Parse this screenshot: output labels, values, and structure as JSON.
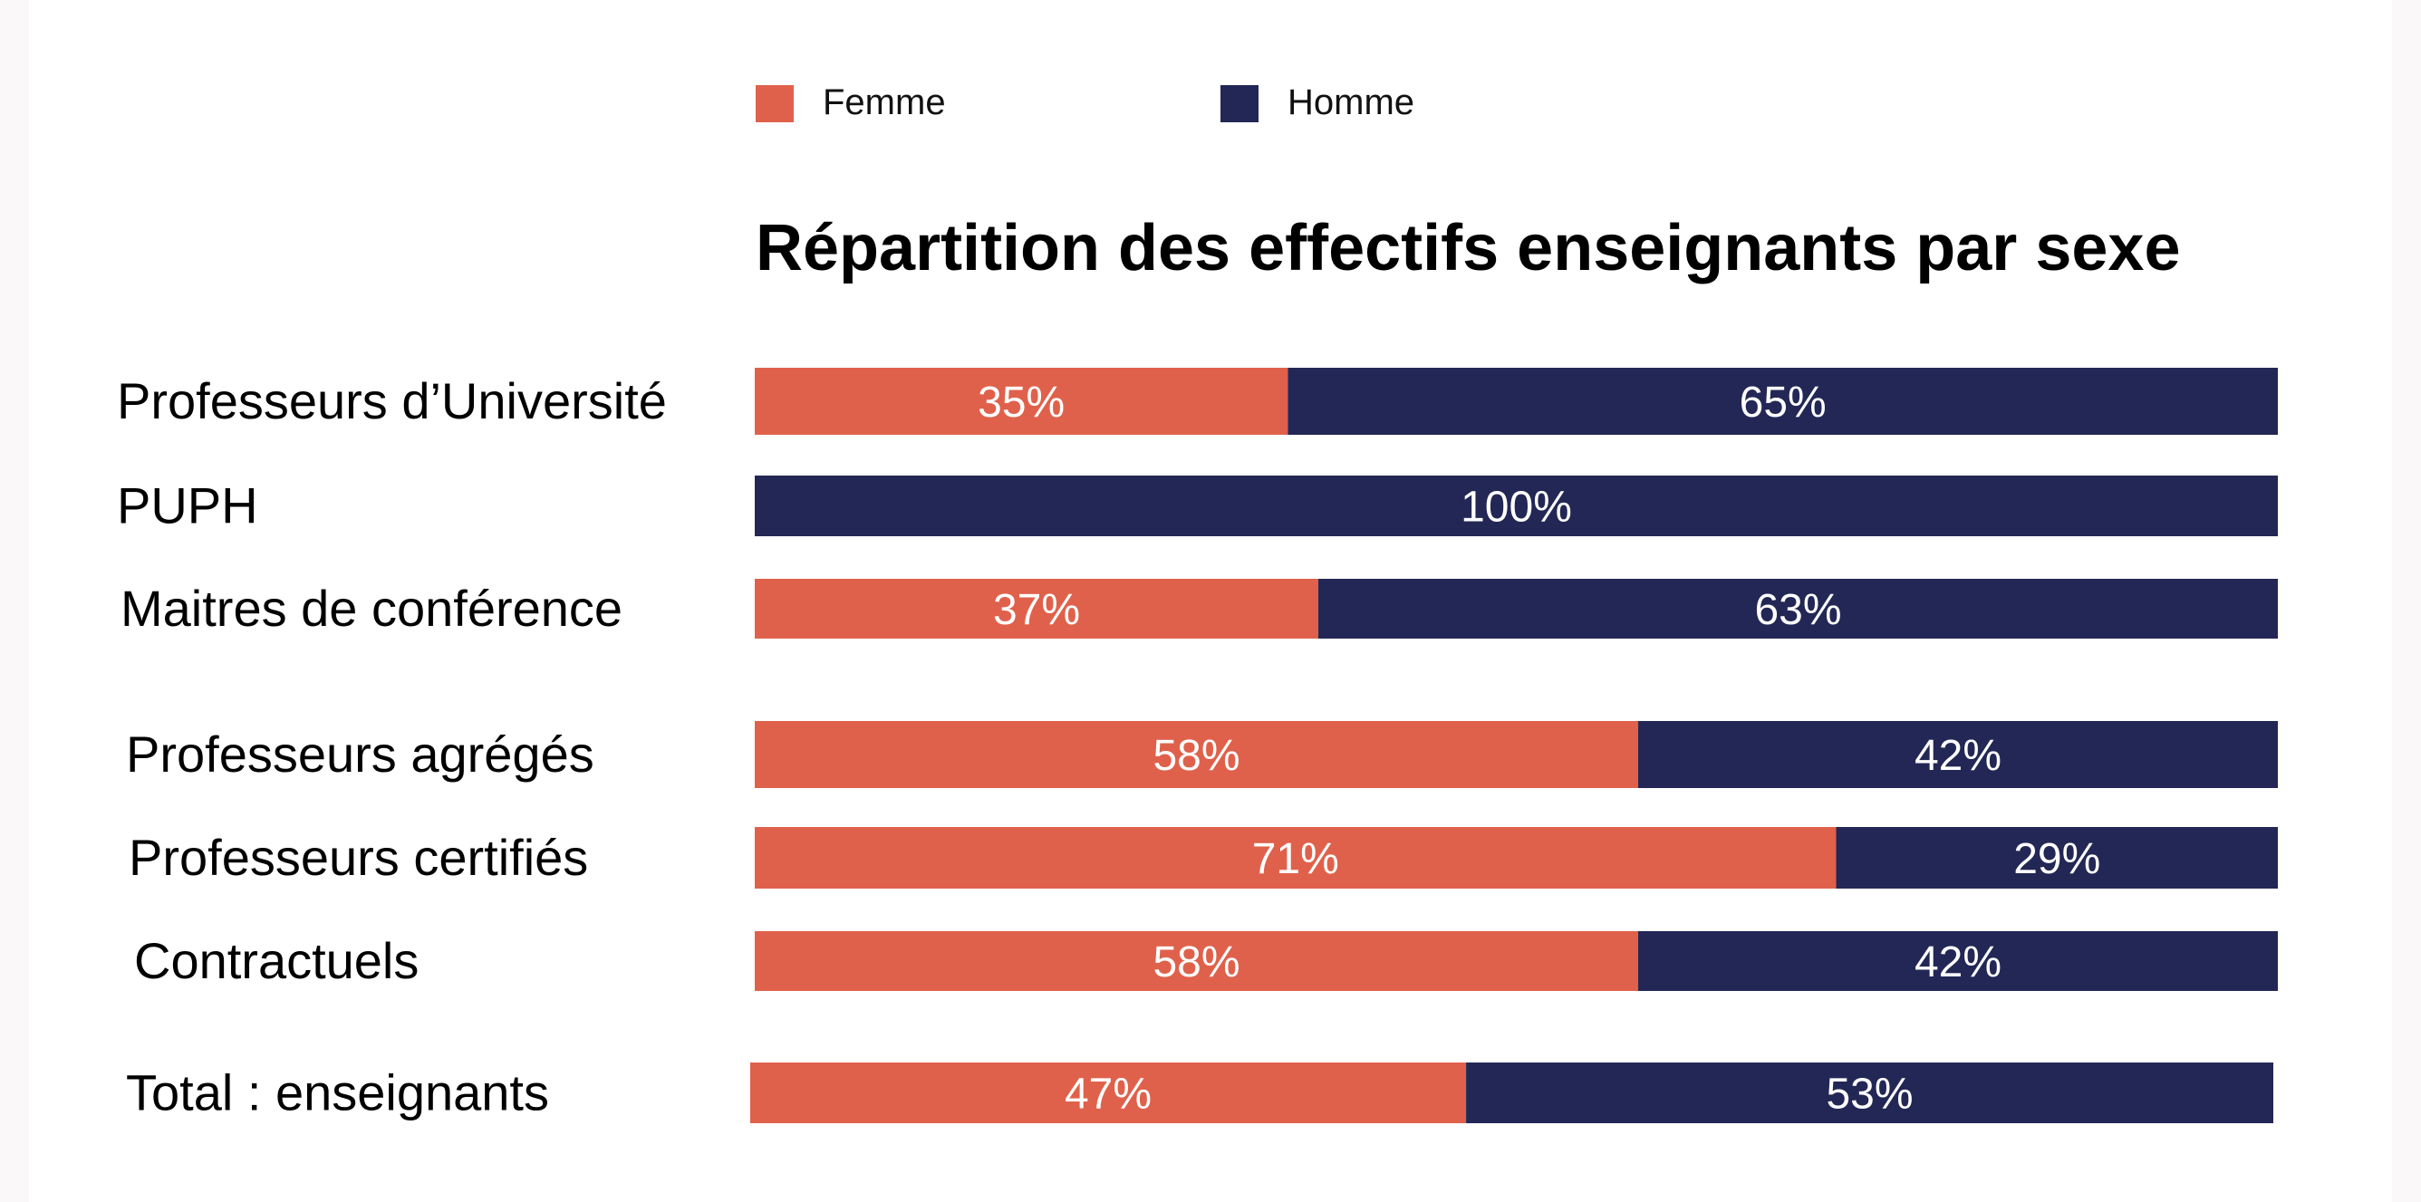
{
  "chart_data": {
    "type": "bar",
    "orientation": "horizontal",
    "stacked": true,
    "percent": true,
    "title": "Répartition des effectifs enseignants par sexe",
    "xlabel": "",
    "ylabel": "",
    "xlim": [
      0,
      100
    ],
    "grid": false,
    "legend_position": "top",
    "categories": [
      "Professeurs d’Université",
      "PUPH",
      "Maitres de conférence",
      "Professeurs agrégés",
      "Professeurs certifiés",
      "Contractuels",
      "Total : enseignants"
    ],
    "series": [
      {
        "name": "Femme",
        "color": "#e0614b",
        "values": [
          35,
          0,
          37,
          58,
          71,
          58,
          47
        ],
        "labels": [
          "35%",
          "",
          "37%",
          "58%",
          "71%",
          "58%",
          "47%"
        ]
      },
      {
        "name": "Homme",
        "color": "#232755",
        "values": [
          65,
          100,
          63,
          42,
          29,
          42,
          53
        ],
        "labels": [
          "65%",
          "100%",
          "63%",
          "42%",
          "29%",
          "42%",
          "53%"
        ]
      }
    ]
  }
}
